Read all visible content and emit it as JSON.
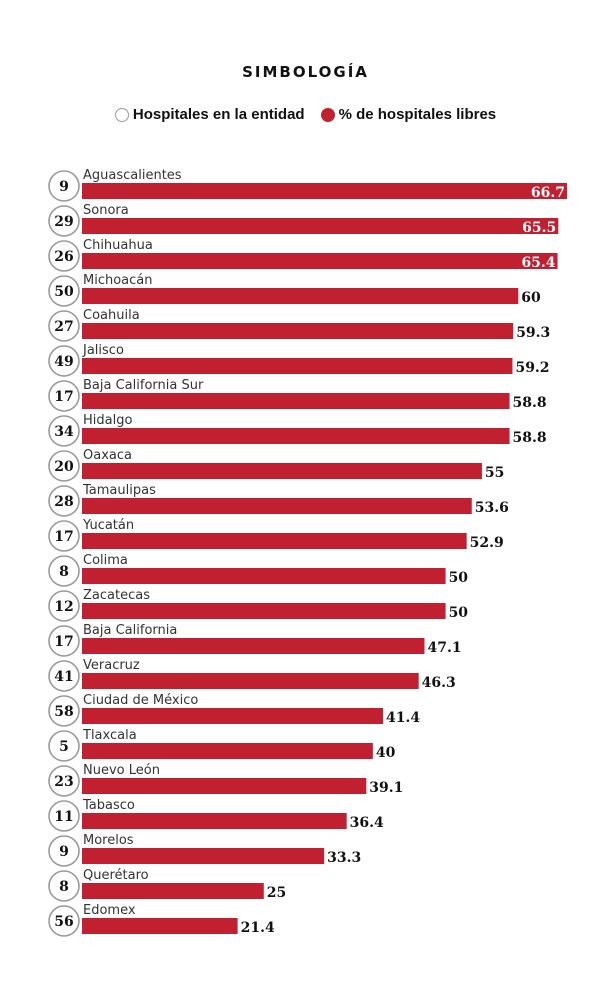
{
  "title": "SIMBOLOGÍA",
  "legend": {
    "count_label": "Hospitales en la entidad",
    "percent_label": "% de hospitales libres"
  },
  "colors": {
    "bar": "#c0202f",
    "circle_border": "#9a9a9a",
    "text": "#111111"
  },
  "chart_data": {
    "type": "bar",
    "orientation": "horizontal",
    "title": "SIMBOLOGÍA",
    "categories": [
      "Aguascalientes",
      "Sonora",
      "Chihuahua",
      "Michoacán",
      "Coahuila",
      "Jalisco",
      "Baja California Sur",
      "Hidalgo",
      "Oaxaca",
      "Tamaulipas",
      "Yucatán",
      "Colima",
      "Zacatecas",
      "Baja California",
      "Veracruz",
      "Ciudad de México",
      "Tlaxcala",
      "Nuevo León",
      "Tabasco",
      "Morelos",
      "Querétaro",
      "Edomex"
    ],
    "series": [
      {
        "name": "% de hospitales libres",
        "values": [
          66.7,
          65.5,
          65.4,
          60,
          59.3,
          59.2,
          58.8,
          58.8,
          55,
          53.6,
          52.9,
          50,
          50,
          47.1,
          46.3,
          41.4,
          40,
          39.1,
          36.4,
          33.3,
          25,
          21.4
        ],
        "labels": [
          "66.7",
          "65.5",
          "65.4",
          "60",
          "59.3",
          "59.2",
          "58.8",
          "58.8",
          "55",
          "53.6",
          "52.9",
          "50",
          "50",
          "47.1",
          "46.3",
          "41.4",
          "40",
          "39.1",
          "36.4",
          "33.3",
          "25",
          "21.4"
        ]
      },
      {
        "name": "Hospitales en la entidad",
        "values": [
          9,
          29,
          26,
          50,
          27,
          49,
          17,
          34,
          20,
          28,
          17,
          8,
          12,
          17,
          41,
          58,
          5,
          23,
          11,
          9,
          8,
          56
        ]
      }
    ],
    "xlim": [
      0,
      66.7
    ],
    "xlabel": "",
    "ylabel": "",
    "grid": false,
    "legend_position": "top-center"
  }
}
